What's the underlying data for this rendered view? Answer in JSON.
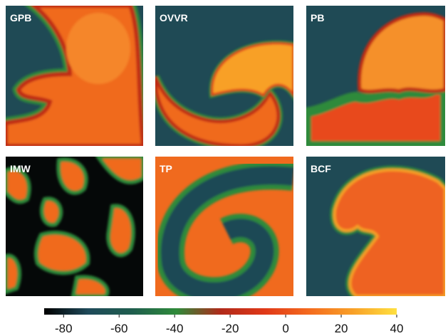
{
  "panels": [
    {
      "label": "GPB"
    },
    {
      "label": "OVVR"
    },
    {
      "label": "PB"
    },
    {
      "label": "IMW"
    },
    {
      "label": "TP"
    },
    {
      "label": "BCF"
    }
  ],
  "colorbar": {
    "lim": [
      -87,
      40
    ],
    "ticks": [
      -80,
      -60,
      -40,
      -20,
      0,
      20,
      40
    ],
    "colors": [
      "#000000",
      "#1f4a5a",
      "#1f5e4e",
      "#2e8a3a",
      "#b02a1a",
      "#e03818",
      "#f46a1e",
      "#f8a028",
      "#ffe040"
    ]
  }
}
